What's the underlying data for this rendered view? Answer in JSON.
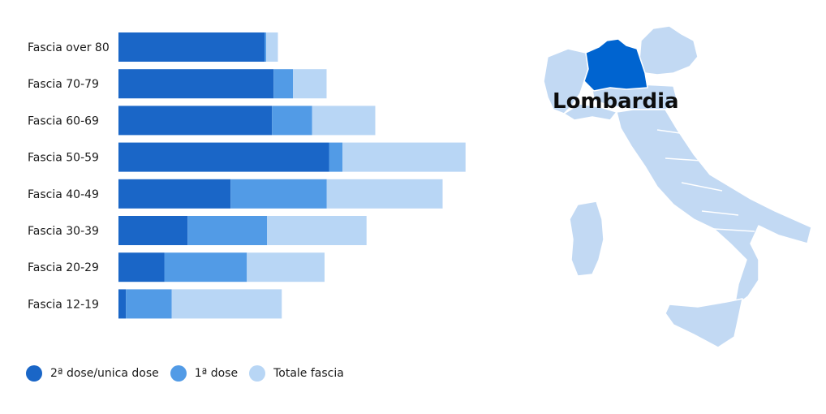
{
  "chart_data": {
    "type": "bar",
    "orientation": "horizontal",
    "stacked": true,
    "categories": [
      "Fascia over 80",
      "Fascia 70-79",
      "Fascia 60-69",
      "Fascia 50-59",
      "Fascia 40-49",
      "Fascia 30-39",
      "Fascia 20-29",
      "Fascia 12-19"
    ],
    "series": [
      {
        "name": "2ª dose/unica dose",
        "values": [
          720,
          765,
          757,
          1038,
          553,
          341,
          226,
          37
        ]
      },
      {
        "name": "1ª dose",
        "values": [
          8,
          95,
          198,
          66,
          474,
          391,
          407,
          225
        ]
      },
      {
        "name": "Totale fascia",
        "values": [
          58,
          166,
          311,
          607,
          571,
          491,
          383,
          543
        ]
      }
    ],
    "colors": {
      "2ª dose/unica dose": "#1a66c7",
      "1ª dose": "#529be6",
      "Totale fascia": "#b8d6f5"
    },
    "legend_position": "bottom-left",
    "grid": false,
    "xlabel": "",
    "ylabel": ""
  },
  "map": {
    "highlighted_region": "Lombardia",
    "highlight_color": "#0064d0",
    "base_color": "#c2d9f3"
  }
}
